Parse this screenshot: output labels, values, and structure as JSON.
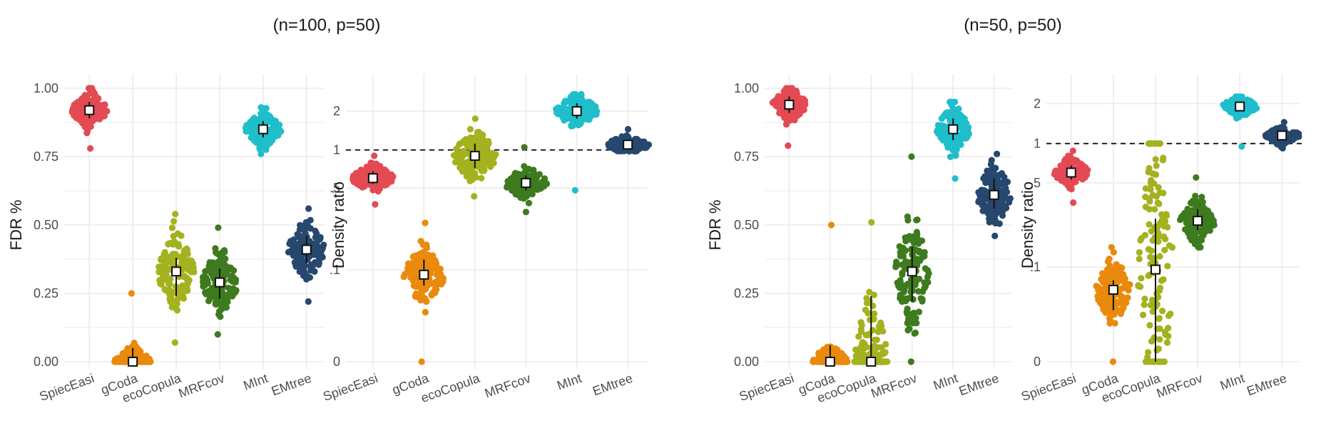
{
  "headers": [
    "(n=100, p=50)",
    "(n=50, p=50)"
  ],
  "colors": {
    "SpiecEasi": "#E34A53",
    "gCoda": "#E98A0C",
    "ecoCopula": "#A3B21E",
    "MRFcov": "#3E7A1E",
    "MInt": "#1FBECB",
    "EMtree": "#26476E",
    "grid": "#EBEBEB",
    "reference": "#000000"
  },
  "chart_data": [
    {
      "type": "scatter",
      "subtype": "beeswarm",
      "header": "(n=100, p=50)",
      "ylabel": "FDR %",
      "ylim": [
        0,
        1.0
      ],
      "yscale": "linear",
      "yticks": [
        0,
        0.25,
        0.5,
        0.75,
        1.0
      ],
      "ytick_labels": [
        "0.00",
        "0.25",
        "0.50",
        "0.75",
        "1.00"
      ],
      "categories": [
        "SpiecEasi",
        "gCoda",
        "ecoCopula",
        "MRFcov",
        "MInt",
        "EMtree"
      ],
      "series": [
        {
          "name": "SpiecEasi",
          "mean": 0.92,
          "sd_low": 0.89,
          "sd_high": 0.95,
          "min": 0.78,
          "max": 1.0
        },
        {
          "name": "gCoda",
          "mean": 0.0,
          "sd_low": 0.0,
          "sd_high": 0.05,
          "min": 0.0,
          "max": 0.25
        },
        {
          "name": "ecoCopula",
          "mean": 0.33,
          "sd_low": 0.24,
          "sd_high": 0.38,
          "min": 0.07,
          "max": 0.54
        },
        {
          "name": "MRFcov",
          "mean": 0.29,
          "sd_low": 0.23,
          "sd_high": 0.34,
          "min": 0.1,
          "max": 0.49
        },
        {
          "name": "MInt",
          "mean": 0.85,
          "sd_low": 0.82,
          "sd_high": 0.88,
          "min": 0.76,
          "max": 0.93
        },
        {
          "name": "EMtree",
          "mean": 0.41,
          "sd_low": 0.36,
          "sd_high": 0.46,
          "min": 0.22,
          "max": 0.56
        }
      ],
      "grid": true,
      "legend": "none"
    },
    {
      "type": "scatter",
      "subtype": "beeswarm",
      "header": "(n=100, p=50)",
      "ylabel": "Density ratio",
      "yscale": "log10(x+0.025)",
      "ylim": [
        0,
        3.0
      ],
      "yticks": [
        0,
        0.1,
        0.5,
        1,
        2
      ],
      "ytick_labels": [
        "0",
        ".1",
        ".5",
        "1",
        "2"
      ],
      "reference_line": 1,
      "categories": [
        "SpiecEasi",
        "gCoda",
        "ecoCopula",
        "MRFcov",
        "MInt",
        "EMtree"
      ],
      "series": [
        {
          "name": "SpiecEasi",
          "mean": 0.6,
          "sd_low": 0.54,
          "sd_high": 0.68,
          "min": 0.37,
          "max": 0.9
        },
        {
          "name": "gCoda",
          "mean": 0.09,
          "sd_low": 0.07,
          "sd_high": 0.125,
          "min": 0.0,
          "max": 0.26
        },
        {
          "name": "ecoCopula",
          "mean": 0.9,
          "sd_low": 0.72,
          "sd_high": 1.12,
          "min": 0.43,
          "max": 1.75
        },
        {
          "name": "MRFcov",
          "mean": 0.55,
          "sd_low": 0.48,
          "sd_high": 0.63,
          "min": 0.32,
          "max": 1.05
        },
        {
          "name": "MInt",
          "mean": 2.0,
          "sd_low": 1.75,
          "sd_high": 2.3,
          "min": 0.48,
          "max": 2.7
        },
        {
          "name": "EMtree",
          "mean": 1.1,
          "sd_low": 1.03,
          "sd_high": 1.2,
          "min": 0.98,
          "max": 1.45
        }
      ],
      "grid": true,
      "legend": "none"
    },
    {
      "type": "scatter",
      "subtype": "beeswarm",
      "header": "(n=50, p=50)",
      "ylabel": "FDR %",
      "ylim": [
        0,
        1.0
      ],
      "yscale": "linear",
      "yticks": [
        0,
        0.25,
        0.5,
        0.75,
        1.0
      ],
      "ytick_labels": [
        "0.00",
        "0.25",
        "0.50",
        "0.75",
        "1.00"
      ],
      "categories": [
        "SpiecEasi",
        "gCoda",
        "ecoCopula",
        "MRFcov",
        "MInt",
        "EMtree"
      ],
      "series": [
        {
          "name": "SpiecEasi",
          "mean": 0.94,
          "sd_low": 0.91,
          "sd_high": 0.97,
          "min": 0.79,
          "max": 1.0
        },
        {
          "name": "gCoda",
          "mean": 0.0,
          "sd_low": 0.0,
          "sd_high": 0.06,
          "min": 0.0,
          "max": 0.5
        },
        {
          "name": "ecoCopula",
          "mean": 0.0,
          "sd_low": 0.0,
          "sd_high": 0.24,
          "min": 0.0,
          "max": 0.51
        },
        {
          "name": "MRFcov",
          "mean": 0.33,
          "sd_low": 0.22,
          "sd_high": 0.42,
          "min": 0.0,
          "max": 0.75
        },
        {
          "name": "MInt",
          "mean": 0.85,
          "sd_low": 0.81,
          "sd_high": 0.89,
          "min": 0.67,
          "max": 0.95
        },
        {
          "name": "EMtree",
          "mean": 0.61,
          "sd_low": 0.56,
          "sd_high": 0.67,
          "min": 0.46,
          "max": 0.76
        }
      ],
      "grid": true,
      "legend": "none"
    },
    {
      "type": "scatter",
      "subtype": "beeswarm",
      "header": "(n=50, p=50)",
      "ylabel": "Density ratio",
      "yscale": "log10(x+0.025)",
      "ylim": [
        0,
        2.6
      ],
      "yticks": [
        0,
        0.1,
        0.5,
        1,
        2
      ],
      "ytick_labels": [
        "0",
        ".1",
        ".5",
        "1",
        "2"
      ],
      "reference_line": 1,
      "categories": [
        "SpiecEasi",
        "gCoda",
        "ecoCopula",
        "MRFcov",
        "MInt",
        "EMtree"
      ],
      "series": [
        {
          "name": "SpiecEasi",
          "mean": 0.6,
          "sd_low": 0.53,
          "sd_high": 0.68,
          "min": 0.35,
          "max": 0.88
        },
        {
          "name": "gCoda",
          "mean": 0.06,
          "sd_low": 0.035,
          "sd_high": 0.075,
          "min": 0.0,
          "max": 0.15
        },
        {
          "name": "ecoCopula",
          "mean": 0.095,
          "sd_low": 0.0,
          "sd_high": 0.26,
          "min": 0.0,
          "max": 1.0
        },
        {
          "name": "MRFcov",
          "mean": 0.25,
          "sd_low": 0.21,
          "sd_high": 0.31,
          "min": 0.15,
          "max": 0.55
        },
        {
          "name": "MInt",
          "mean": 1.9,
          "sd_low": 1.75,
          "sd_high": 2.05,
          "min": 0.95,
          "max": 2.25
        },
        {
          "name": "EMtree",
          "mean": 1.15,
          "sd_low": 1.08,
          "sd_high": 1.25,
          "min": 0.92,
          "max": 1.45
        }
      ],
      "grid": true,
      "legend": "none"
    }
  ]
}
